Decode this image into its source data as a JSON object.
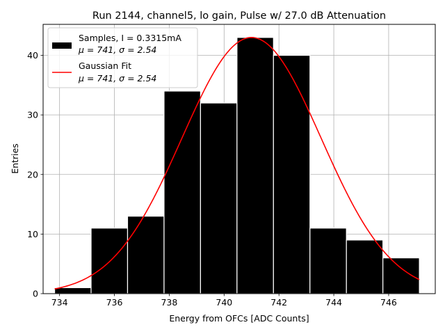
{
  "chart_data": {
    "type": "histogram",
    "title": "Run 2144, channel5, lo gain, Pulse w/ 27.0 dB Attenuation",
    "xlabel": "Energy from OFCs [ADC Counts]",
    "ylabel": "Entries",
    "xlim": [
      733.4,
      747.7
    ],
    "ylim": [
      0,
      45.2
    ],
    "xticks": [
      "734",
      "736",
      "738",
      "740",
      "742",
      "744",
      "746"
    ],
    "yticks": [
      "0",
      "10",
      "20",
      "30",
      "40"
    ],
    "grid": true,
    "legend_position": "top-left",
    "bins": [
      {
        "x0": 733.82,
        "x1": 735.15,
        "count": 1
      },
      {
        "x0": 735.15,
        "x1": 736.48,
        "count": 11
      },
      {
        "x0": 736.48,
        "x1": 737.81,
        "count": 13
      },
      {
        "x0": 737.81,
        "x1": 739.14,
        "count": 34
      },
      {
        "x0": 739.14,
        "x1": 740.47,
        "count": 32
      },
      {
        "x0": 740.47,
        "x1": 741.8,
        "count": 43
      },
      {
        "x0": 741.8,
        "x1": 743.13,
        "count": 40
      },
      {
        "x0": 743.13,
        "x1": 744.46,
        "count": 11
      },
      {
        "x0": 744.46,
        "x1": 745.79,
        "count": 9
      },
      {
        "x0": 745.79,
        "x1": 747.12,
        "count": 6
      }
    ],
    "series": [
      {
        "name": "Samples, I = 0.3315mA",
        "stats": "μ = 741, σ = 2.54",
        "kind": "histogram",
        "color": "#000000"
      },
      {
        "name": "Gaussian Fit",
        "stats": "μ = 741, σ = 2.54",
        "kind": "line",
        "color": "#ff0000",
        "fit": {
          "mu": 741.0,
          "sigma": 2.54,
          "amplitude": 43.0,
          "x_range": [
            733.82,
            747.12
          ]
        }
      }
    ]
  }
}
